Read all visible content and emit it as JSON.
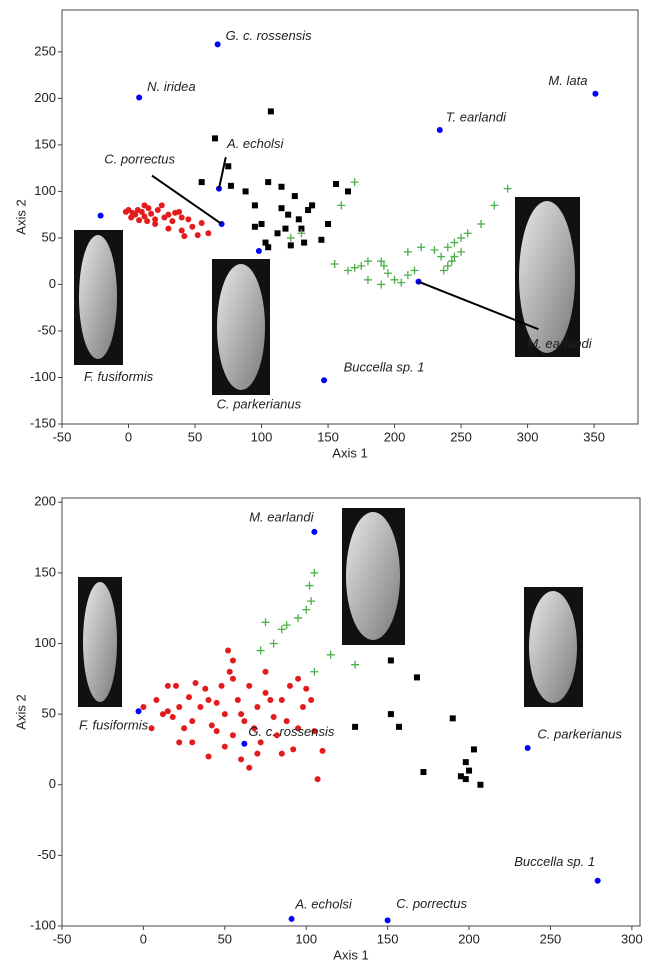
{
  "chart_data": [
    {
      "type": "scatter",
      "xlabel": "Axis 1",
      "ylabel": "Axis 2",
      "xlim": [
        -50,
        383
      ],
      "ylim": [
        -150,
        295
      ],
      "xticks": [
        -50,
        0,
        50,
        100,
        150,
        200,
        250,
        300,
        350
      ],
      "yticks": [
        -150,
        -100,
        -50,
        0,
        50,
        100,
        150,
        200,
        250
      ],
      "series": [
        {
          "color": "#e41a1c",
          "marker": "circle",
          "x": [
            0,
            3,
            5,
            7,
            10,
            12,
            15,
            17,
            20,
            22,
            25,
            27,
            30,
            33,
            35,
            38,
            40,
            45,
            2,
            8,
            14,
            20,
            30,
            40,
            42,
            48,
            55,
            52,
            60,
            -2,
            12
          ],
          "values": [
            80,
            77,
            75,
            80,
            78,
            73,
            82,
            76,
            70,
            80,
            85,
            72,
            75,
            68,
            77,
            78,
            72,
            70,
            72,
            69,
            68,
            65,
            60,
            58,
            52,
            62,
            66,
            53,
            55,
            78,
            85
          ]
        },
        {
          "color": "#000000",
          "marker": "square",
          "x": [
            55,
            65,
            107,
            75,
            77,
            95,
            88,
            105,
            115,
            125,
            135,
            138,
            120,
            128,
            118,
            100,
            112,
            103,
            105,
            122,
            132,
            145,
            150,
            156,
            165,
            95,
            130,
            115
          ],
          "values": [
            110,
            157,
            186,
            127,
            106,
            85,
            100,
            110,
            105,
            95,
            80,
            85,
            75,
            70,
            60,
            65,
            55,
            45,
            40,
            42,
            45,
            48,
            65,
            108,
            100,
            62,
            60,
            82
          ]
        },
        {
          "color": "#4daf4a",
          "marker": "plus",
          "x": [
            170,
            160,
            155,
            165,
            170,
            175,
            180,
            190,
            192,
            195,
            200,
            205,
            210,
            215,
            190,
            180,
            210,
            220,
            230,
            240,
            245,
            250,
            255,
            265,
            275,
            285,
            240,
            243,
            245,
            250,
            237,
            235,
            122,
            130
          ],
          "values": [
            110,
            85,
            22,
            15,
            18,
            20,
            25,
            25,
            20,
            12,
            5,
            2,
            10,
            15,
            0,
            5,
            35,
            40,
            37,
            40,
            45,
            50,
            55,
            65,
            85,
            103,
            20,
            25,
            30,
            35,
            15,
            30,
            50,
            55
          ]
        },
        {
          "color": "#0000ff",
          "marker": "circle",
          "x": [
            67,
            8,
            351,
            234,
            68,
            70,
            -21,
            98,
            218,
            147
          ],
          "values": [
            258,
            201,
            205,
            166,
            103,
            65,
            74,
            36,
            3,
            -103
          ],
          "labels": [
            "G. c. rossensis",
            "N. iridea",
            "M. lata",
            "T. earlandi",
            "A. echolsi",
            "C. porrectus",
            "F. fusiformis",
            "C. parkerianus",
            "M. earlandi",
            "Buccella sp. 1"
          ]
        }
      ]
    },
    {
      "type": "scatter",
      "xlabel": "Axis 1",
      "ylabel": "Axis 2",
      "xlim": [
        -50,
        305
      ],
      "ylim": [
        -100,
        203
      ],
      "xticks": [
        -50,
        0,
        50,
        100,
        150,
        200,
        250,
        300
      ],
      "yticks": [
        -100,
        -50,
        0,
        50,
        100,
        150,
        200
      ],
      "series": [
        {
          "color": "#e41a1c",
          "marker": "circle",
          "x": [
            0,
            8,
            12,
            15,
            18,
            22,
            20,
            25,
            28,
            30,
            32,
            35,
            38,
            40,
            42,
            45,
            48,
            50,
            52,
            55,
            53,
            55,
            58,
            60,
            62,
            65,
            68,
            70,
            72,
            75,
            78,
            80,
            82,
            85,
            88,
            90,
            92,
            95,
            98,
            100,
            103,
            105,
            107,
            110,
            30,
            45,
            55,
            60,
            75,
            85,
            40,
            15,
            5,
            65,
            95,
            50,
            70,
            22
          ],
          "values": [
            55,
            60,
            50,
            52,
            48,
            55,
            70,
            40,
            62,
            45,
            72,
            55,
            68,
            60,
            42,
            38,
            70,
            50,
            95,
            88,
            80,
            35,
            60,
            18,
            45,
            12,
            40,
            55,
            30,
            65,
            60,
            48,
            35,
            60,
            45,
            70,
            25,
            75,
            55,
            68,
            60,
            38,
            4,
            24,
            30,
            58,
            75,
            50,
            80,
            22,
            20,
            70,
            40,
            70,
            40,
            27,
            22,
            30
          ]
        },
        {
          "color": "#000000",
          "marker": "square",
          "x": [
            130,
            152,
            152,
            157,
            168,
            172,
            190,
            195,
            198,
            200,
            198,
            203,
            207
          ],
          "values": [
            41,
            88,
            50,
            41,
            76,
            9,
            47,
            6,
            16,
            10,
            4,
            25,
            0
          ]
        },
        {
          "color": "#4daf4a",
          "marker": "plus",
          "x": [
            105,
            102,
            103,
            100,
            95,
            88,
            75,
            80,
            72,
            115,
            105,
            130,
            85
          ],
          "values": [
            150,
            141,
            130,
            124,
            118,
            113,
            115,
            100,
            95,
            92,
            80,
            85,
            110
          ]
        },
        {
          "color": "#0000ff",
          "marker": "circle",
          "x": [
            105,
            -3,
            62,
            236,
            279,
            91,
            150
          ],
          "values": [
            179,
            52,
            29,
            26,
            -68,
            -95,
            -96
          ],
          "labels": [
            "M. earlandi",
            "F. fusiformis",
            "G. c. rossensis",
            "C. parkerianus",
            "Buccella sp. 1",
            "A. echolsi",
            "C. porrectus"
          ]
        }
      ]
    }
  ]
}
